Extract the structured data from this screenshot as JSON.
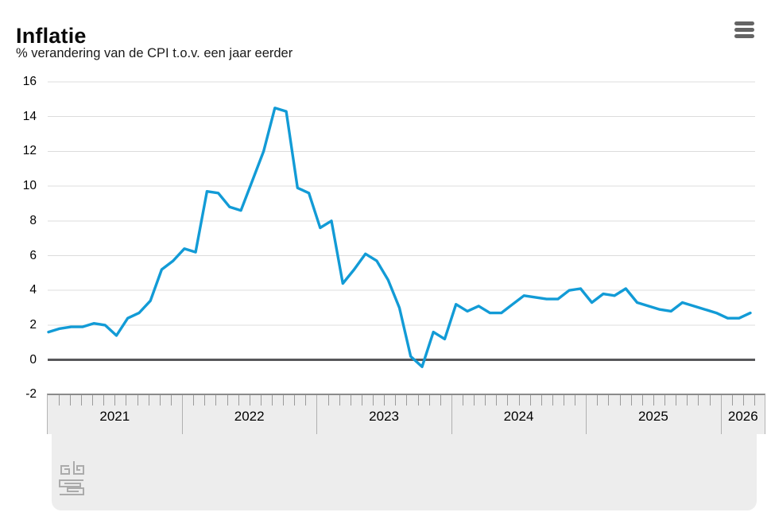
{
  "header": {
    "title": "Inflatie",
    "subtitle": "% verandering van de CPI t.o.v. een jaar eerder",
    "menu_icon": "hamburger-menu-icon"
  },
  "colors": {
    "line": "#129bd6",
    "grid": "#dcdcdc",
    "zero_line": "#58585a",
    "footer_bg": "#ededed",
    "axis_border": "#8b8b8b",
    "tick": "#9b9b9b",
    "menu_bars": "#646464",
    "logo_gray": "#ababab"
  },
  "footer": {
    "logo": "cbs-logo"
  },
  "chart_data": {
    "type": "line",
    "title": "Inflatie",
    "subtitle": "% verandering van de CPI t.o.v. een jaar eerder",
    "unit": "%",
    "ylim": [
      -2,
      16
    ],
    "yticks": [
      16,
      14,
      12,
      10,
      8,
      6,
      4,
      2,
      0,
      -2
    ],
    "grid": true,
    "zero_line_bold": true,
    "legend": "none",
    "x_frequency": "monthly",
    "x_start": "2021-01",
    "x_end": "2026-03",
    "x_year_labels": [
      "2021",
      "2022",
      "2023",
      "2024",
      "2025",
      "2026"
    ],
    "series": [
      {
        "name": "Inflatie (CPI, % j-o-j)",
        "values": [
          1.6,
          1.8,
          1.9,
          1.9,
          2.1,
          2.0,
          1.4,
          2.4,
          2.7,
          3.4,
          5.2,
          5.7,
          6.4,
          6.2,
          9.7,
          9.6,
          8.8,
          8.6,
          10.3,
          12.0,
          14.5,
          14.3,
          9.9,
          9.6,
          7.6,
          8.0,
          4.4,
          5.2,
          6.1,
          5.7,
          4.6,
          3.0,
          0.2,
          -0.4,
          1.6,
          1.2,
          3.2,
          2.8,
          3.1,
          2.7,
          2.7,
          3.2,
          3.7,
          3.6,
          3.5,
          3.5,
          4.0,
          4.1,
          3.3,
          3.8,
          3.7,
          4.1,
          3.3,
          3.1,
          2.9,
          2.8,
          3.3,
          3.1,
          2.9,
          2.7,
          2.4,
          2.4,
          2.7
        ]
      }
    ]
  }
}
